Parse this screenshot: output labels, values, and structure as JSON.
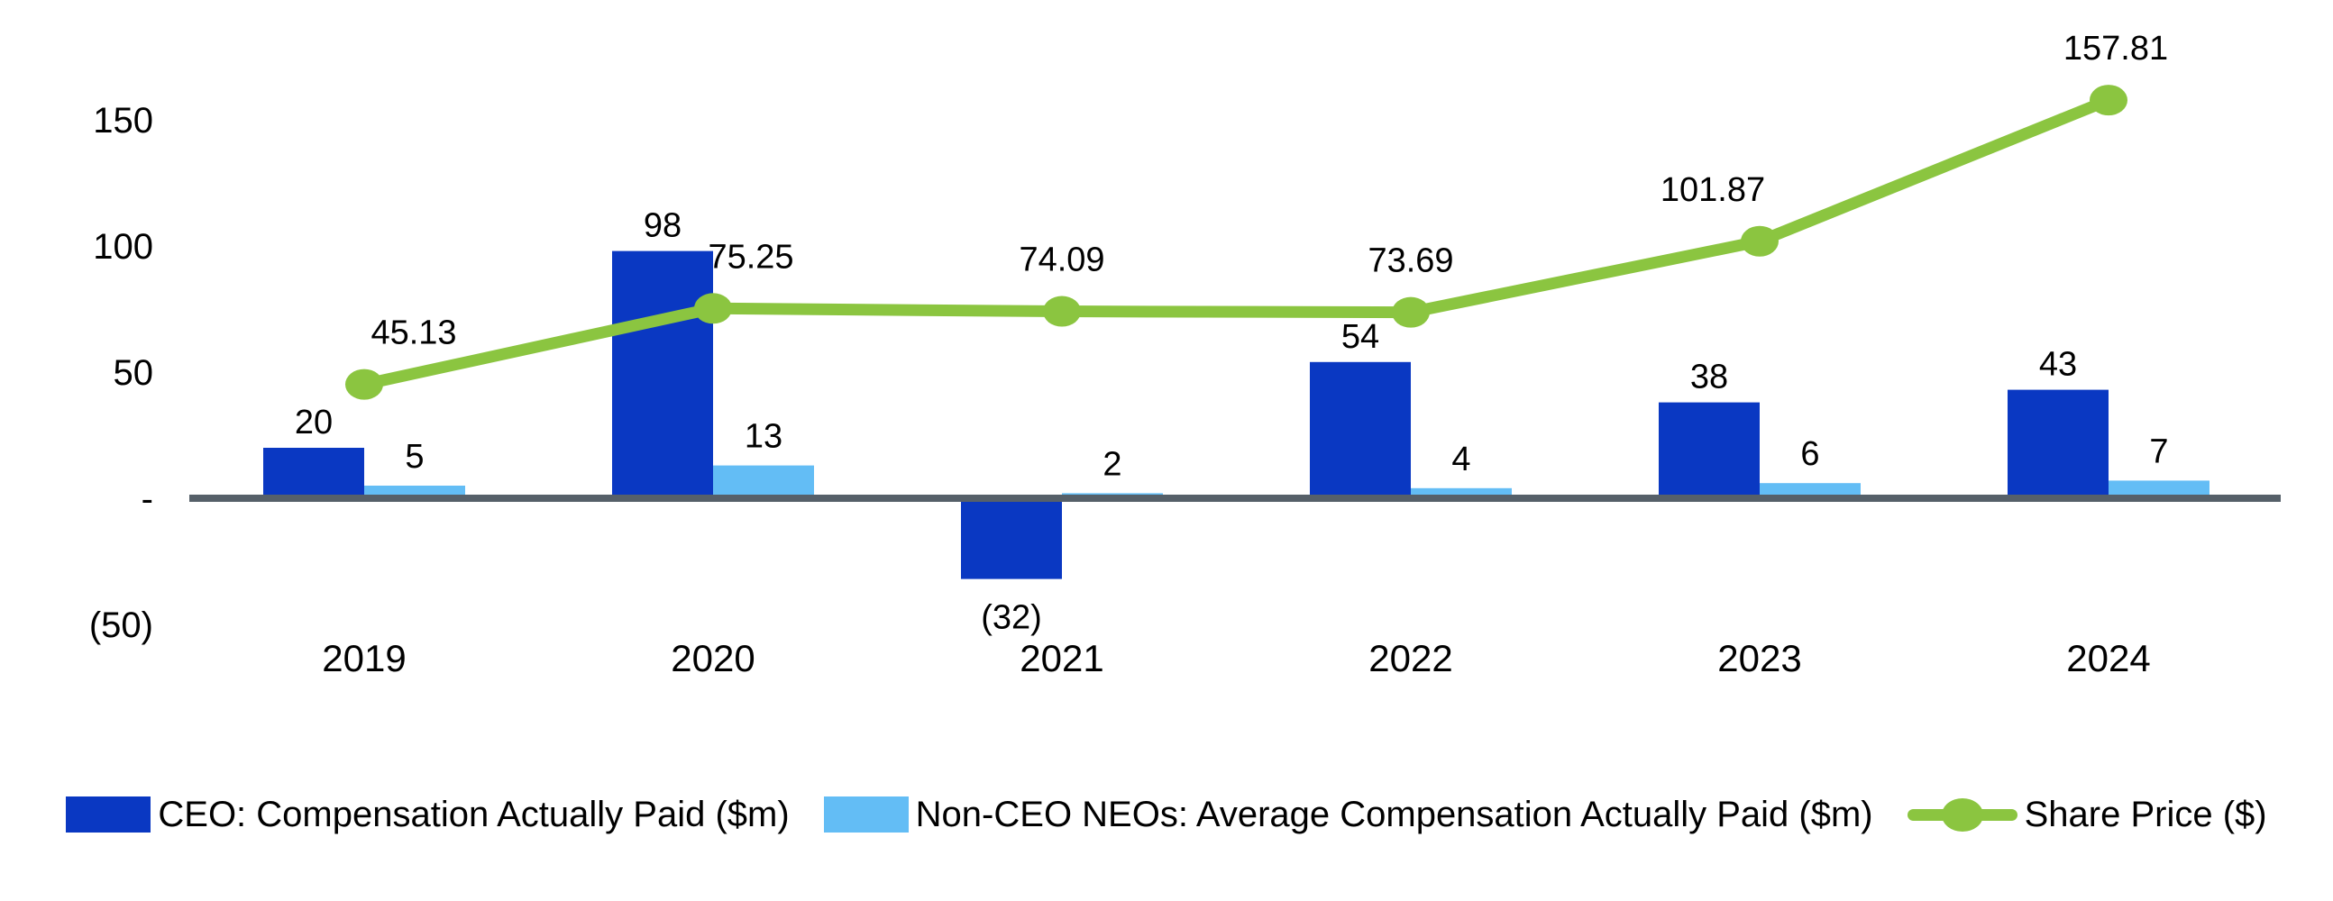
{
  "chart_data": {
    "type": "combo-bar-line",
    "title": "",
    "xlabel": "",
    "ylabel": "",
    "background": "#ffffff",
    "text_color": "#000000",
    "axis_line_color": "#566069",
    "grid": false,
    "legend_position": "bottom",
    "categories": [
      "2019",
      "2020",
      "2021",
      "2022",
      "2023",
      "2024"
    ],
    "y_axis": {
      "range": [
        -50,
        175
      ],
      "ticks": [
        {
          "value": 150,
          "label": "150"
        },
        {
          "value": 100,
          "label": "100"
        },
        {
          "value": 50,
          "label": "50"
        },
        {
          "value": 0,
          "label": "-"
        },
        {
          "value": -50,
          "label": "(50)"
        }
      ]
    },
    "series": [
      {
        "name": "CEO: Compensation Actually Paid ($m)",
        "type": "bar",
        "color": "#0a38c2",
        "values": [
          20,
          98,
          -32,
          54,
          38,
          43
        ],
        "labels": [
          "20",
          "98",
          "(32)",
          "54",
          "38",
          "43"
        ]
      },
      {
        "name": "Non-CEO NEOs: Average Compensation Actually Paid ($m)",
        "type": "bar",
        "color": "#63bdf5",
        "values": [
          5,
          13,
          2,
          4,
          6,
          7
        ],
        "labels": [
          "5",
          "13",
          "2",
          "4",
          "6",
          "7"
        ]
      },
      {
        "name": "Share Price ($)",
        "type": "line",
        "color": "#8bc540",
        "values": [
          45.13,
          75.25,
          74.09,
          73.69,
          101.87,
          157.81
        ],
        "labels": [
          "45.13",
          "75.25",
          "74.09",
          "73.69",
          "101.87",
          "157.81"
        ]
      }
    ]
  }
}
